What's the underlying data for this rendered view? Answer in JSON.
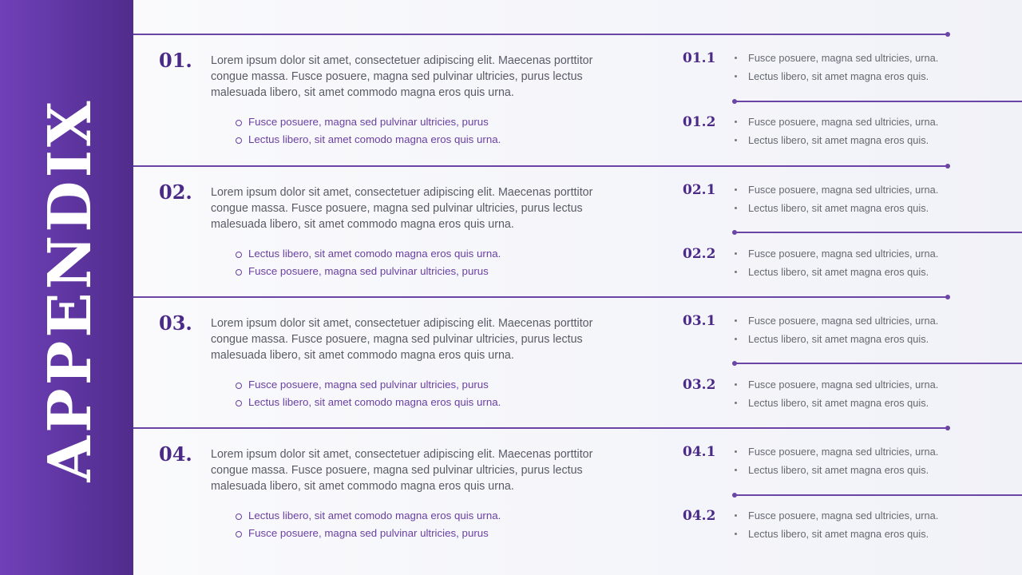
{
  "title": "APPENDIX",
  "sections": [
    {
      "num": "01.",
      "para": "Lorem ipsum dolor sit amet, consectetuer adipiscing elit. Maecenas porttitor congue massa. Fusce posuere, magna sed pulvinar ultricies, purus lectus malesuada libero, sit amet commodo magna eros quis urna.",
      "bullets": [
        "Fusce posuere, magna sed pulvinar ultricies, purus",
        "Lectus libero, sit amet comodo magna eros quis urna."
      ],
      "subs": [
        {
          "label": "01.1",
          "items": [
            "Fusce posuere, magna sed ultricies, urna.",
            "Lectus libero, sit amet magna eros quis."
          ]
        },
        {
          "label": "01.2",
          "items": [
            "Fusce posuere, magna sed ultricies, urna.",
            "Lectus libero, sit amet magna eros quis."
          ]
        }
      ]
    },
    {
      "num": "02.",
      "para": "Lorem ipsum dolor sit amet, consectetuer adipiscing elit. Maecenas porttitor congue massa. Fusce posuere, magna sed pulvinar ultricies, purus lectus malesuada libero, sit amet commodo magna eros quis urna.",
      "bullets": [
        "Lectus libero, sit amet comodo magna eros quis urna.",
        "Fusce posuere, magna sed pulvinar ultricies, purus"
      ],
      "subs": [
        {
          "label": "02.1",
          "items": [
            "Fusce posuere, magna sed ultricies, urna.",
            "Lectus libero, sit amet magna eros quis."
          ]
        },
        {
          "label": "02.2",
          "items": [
            "Fusce posuere, magna sed ultricies, urna.",
            "Lectus libero, sit amet magna eros quis."
          ]
        }
      ]
    },
    {
      "num": "03.",
      "para": "Lorem ipsum dolor sit amet, consectetuer adipiscing elit. Maecenas porttitor congue massa. Fusce posuere, magna sed pulvinar ultricies, purus lectus malesuada libero, sit amet commodo magna eros quis urna.",
      "bullets": [
        "Fusce posuere, magna sed pulvinar ultricies, purus",
        "Lectus libero, sit amet comodo magna eros quis urna."
      ],
      "subs": [
        {
          "label": "03.1",
          "items": [
            "Fusce posuere, magna sed ultricies, urna.",
            "Lectus libero, sit amet magna eros quis."
          ]
        },
        {
          "label": "03.2",
          "items": [
            "Fusce posuere, magna sed ultricies, urna.",
            "Lectus libero, sit amet magna eros quis."
          ]
        }
      ]
    },
    {
      "num": "04.",
      "para": "Lorem ipsum dolor sit amet, consectetuer adipiscing elit. Maecenas porttitor congue massa. Fusce posuere, magna sed pulvinar ultricies, purus lectus malesuada libero, sit amet commodo magna eros quis urna.",
      "bullets": [
        "Lectus libero, sit amet comodo magna eros quis urna.",
        "Fusce posuere, magna sed pulvinar ultricies, purus"
      ],
      "subs": [
        {
          "label": "04.1",
          "items": [
            "Fusce posuere, magna sed ultricies, urna.",
            "Lectus libero, sit amet magna eros quis."
          ]
        },
        {
          "label": "04.2",
          "items": [
            "Fusce posuere, magna sed ultricies, urna.",
            "Lectus libero, sit amet magna eros quis."
          ]
        }
      ]
    }
  ],
  "colors": {
    "accent": "#6b45a6",
    "heading": "#4a2a86",
    "sidebar_start": "#6f40b8",
    "sidebar_end": "#502c8c"
  }
}
